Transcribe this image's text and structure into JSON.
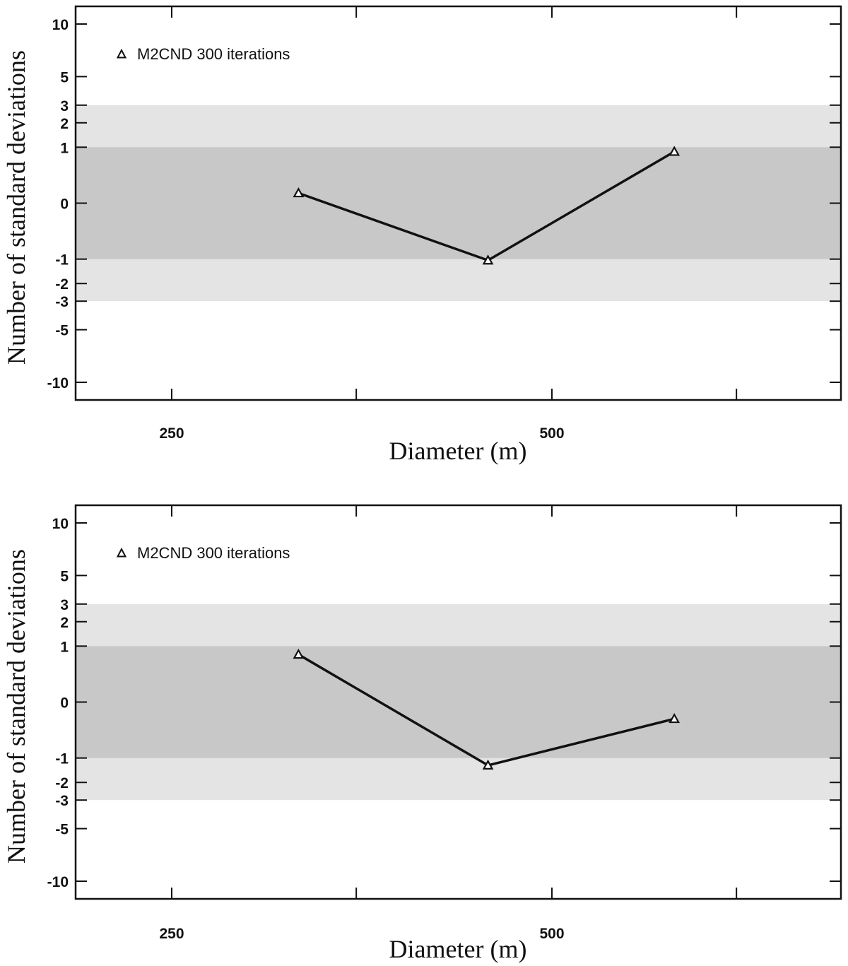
{
  "chart_data": [
    {
      "type": "line",
      "xlabel": "Diameter (m)",
      "ylabel": "Number of standard deviations",
      "x_scale": "log",
      "y_scale": "symmetric-nonlinear",
      "x_ticks": [
        250,
        500
      ],
      "y_ticks": [
        -10,
        -5,
        -3,
        -2,
        -1,
        0,
        1,
        2,
        3,
        5,
        10
      ],
      "bands": [
        {
          "from": -3,
          "to": 3,
          "color": "#e4e4e4"
        },
        {
          "from": -1,
          "to": 1,
          "color": "#c8c8c8"
        }
      ],
      "legend_position": "top-left",
      "series": [
        {
          "name": "M2CND 300 iterations",
          "marker": "triangle",
          "x": [
            315,
            445,
            625
          ],
          "y": [
            0.18,
            -1.05,
            0.92
          ]
        }
      ]
    },
    {
      "type": "line",
      "xlabel": "Diameter (m)",
      "ylabel": "Number of standard deviations",
      "x_scale": "log",
      "y_scale": "symmetric-nonlinear",
      "x_ticks": [
        250,
        500
      ],
      "y_ticks": [
        -10,
        -5,
        -3,
        -2,
        -1,
        0,
        1,
        2,
        3,
        5,
        10
      ],
      "bands": [
        {
          "from": -3,
          "to": 3,
          "color": "#e4e4e4"
        },
        {
          "from": -1,
          "to": 1,
          "color": "#c8c8c8"
        }
      ],
      "legend_position": "top-left",
      "series": [
        {
          "name": "M2CND 300 iterations",
          "marker": "triangle",
          "x": [
            315,
            445,
            625
          ],
          "y": [
            0.85,
            -1.3,
            -0.3
          ]
        }
      ]
    }
  ]
}
